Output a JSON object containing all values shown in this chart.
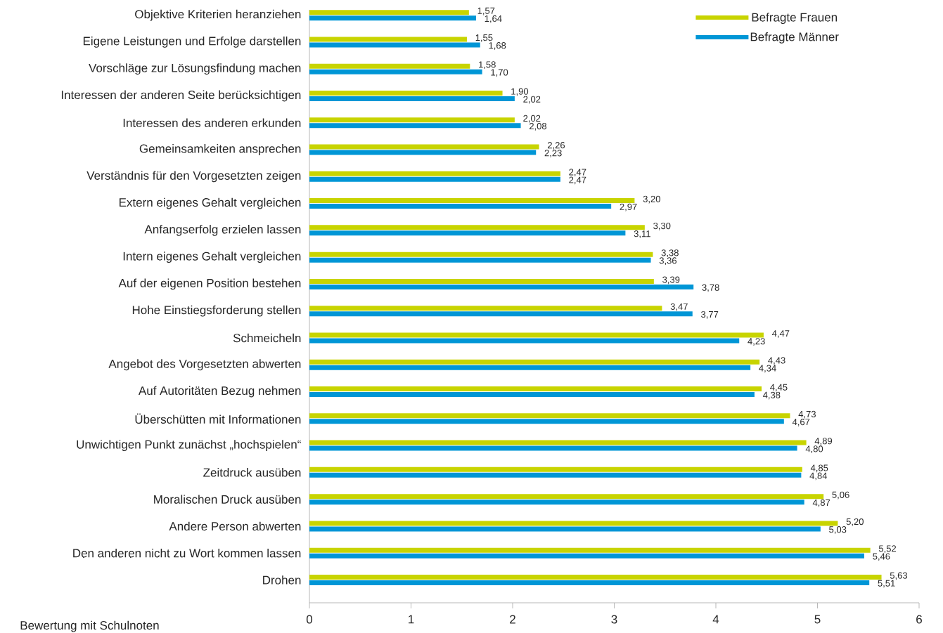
{
  "chart_data": {
    "type": "bar",
    "orientation": "horizontal",
    "xlabel": "Bewertung mit Schulnoten",
    "categories": [
      "Objektive Kriterien heranziehen",
      "Eigene Leistungen und Erfolge darstellen",
      "Vorschläge zur Lösungsfindung machen",
      "Interessen der anderen Seite berücksichtigen",
      "Interessen des anderen erkunden",
      "Gemeinsamkeiten ansprechen",
      "Verständnis für den Vorgesetzten zeigen",
      "Extern eigenes Gehalt vergleichen",
      "Anfangserfolg erzielen lassen",
      "Intern eigenes Gehalt vergleichen",
      "Auf der eigenen Position bestehen",
      "Hohe Einstiegsforderung stellen",
      "Schmeicheln",
      "Angebot des Vorgesetzten abwerten",
      "Auf Autoritäten Bezug nehmen",
      "Überschütten mit Informationen",
      "Unwichtigen Punkt zunächst „hochspielen“",
      "Zeitdruck ausüben",
      "Moralischen Druck ausüben",
      "Andere Person abwerten",
      "Den anderen nicht zu Wort kommen lassen",
      "Drohen"
    ],
    "series": [
      {
        "name": "Befragte Frauen",
        "color": "#c8d400",
        "values": [
          1.57,
          1.55,
          1.58,
          1.9,
          2.02,
          2.26,
          2.47,
          3.2,
          3.3,
          3.38,
          3.39,
          3.47,
          4.47,
          4.43,
          4.45,
          4.73,
          4.89,
          4.85,
          5.06,
          5.2,
          5.52,
          5.63
        ],
        "value_labels": [
          "1,57",
          "1,55",
          "1,58",
          "1,90",
          "2,02",
          "2,26",
          "2,47",
          "3,20",
          "3,30",
          "3,38",
          "3,39",
          "3,47",
          "4,47",
          "4,43",
          "4,45",
          "4,73",
          "4,89",
          "4,85",
          "5,06",
          "5,20",
          "5,52",
          "5,63"
        ]
      },
      {
        "name": "Befragte Männer",
        "color": "#0096d6",
        "values": [
          1.64,
          1.68,
          1.7,
          2.02,
          2.08,
          2.23,
          2.47,
          2.97,
          3.11,
          3.36,
          3.78,
          3.77,
          4.23,
          4.34,
          4.38,
          4.67,
          4.8,
          4.84,
          4.87,
          5.03,
          5.46,
          5.51
        ],
        "value_labels": [
          "1,64",
          "1,68",
          "1,70",
          "2,02",
          "2,08",
          "2,23",
          "2,47",
          "2,97",
          "3,11",
          "3,36",
          "3,78",
          "3,77",
          "4,23",
          "4,34",
          "4,38",
          "4,67",
          "4,80",
          "4,84",
          "4,87",
          "5,03",
          "5,46",
          "5,51"
        ]
      }
    ],
    "xlim": [
      0,
      6
    ],
    "xticks": [
      0,
      1,
      2,
      3,
      4,
      5,
      6
    ],
    "legend": "top right"
  }
}
